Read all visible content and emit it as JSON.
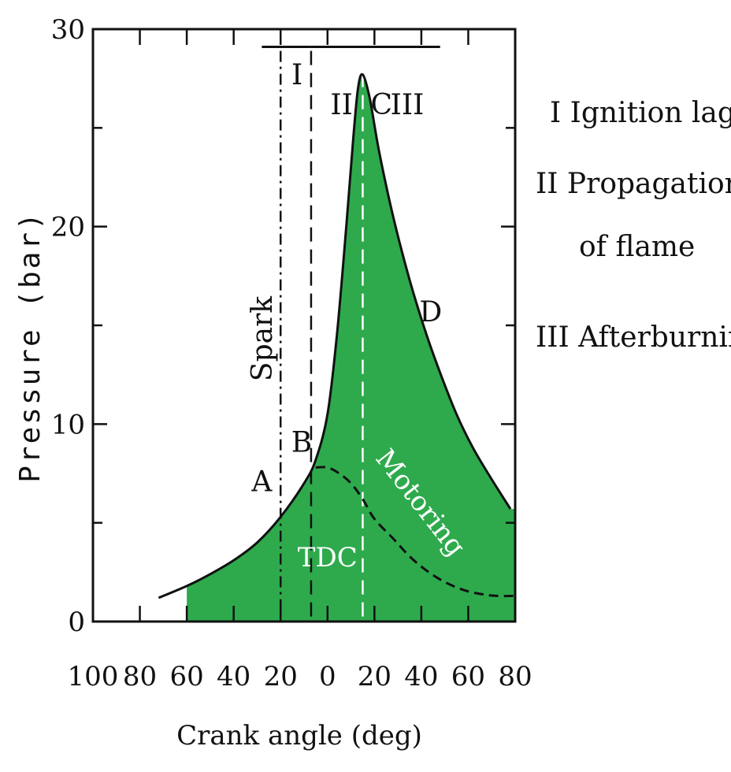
{
  "chart_data": {
    "type": "line",
    "title": "",
    "xlabel": "Crank angle (deg)",
    "ylabel": "Pressure (bar)",
    "xlim": [
      -100,
      80
    ],
    "ylim": [
      0,
      30
    ],
    "x_ticks": [
      {
        "value": -100,
        "label": "100"
      },
      {
        "value": -80,
        "label": "80"
      },
      {
        "value": -60,
        "label": "60"
      },
      {
        "value": -40,
        "label": "40"
      },
      {
        "value": -20,
        "label": "20"
      },
      {
        "value": 0,
        "label": "0"
      },
      {
        "value": 20,
        "label": "20"
      },
      {
        "value": 40,
        "label": "40"
      },
      {
        "value": 60,
        "label": "60"
      },
      {
        "value": 80,
        "label": "80"
      }
    ],
    "y_ticks": [
      {
        "value": 0,
        "label": "0"
      },
      {
        "value": 10,
        "label": "10"
      },
      {
        "value": 20,
        "label": "20"
      },
      {
        "value": 30,
        "label": "30"
      }
    ],
    "series": [
      {
        "style": "solid",
        "color": "#111111",
        "fill": "#2eaa4d",
        "x": [
          -72,
          -60,
          -50,
          -40,
          -30,
          -20,
          -10,
          -5,
          0,
          4,
          8,
          11,
          13,
          15,
          18,
          22,
          28,
          35,
          42,
          48,
          55,
          62,
          70,
          78
        ],
        "y": [
          1.2,
          1.8,
          2.4,
          3.1,
          4.0,
          5.3,
          7.0,
          8.2,
          10.5,
          14.5,
          20.0,
          24.5,
          27.0,
          27.7,
          26.5,
          23.8,
          20.5,
          17.3,
          14.6,
          12.6,
          10.5,
          8.8,
          7.2,
          5.7
        ]
      },
      {
        "name": "Motoring",
        "style": "dashed",
        "color": "#111111",
        "x": [
          -5,
          0,
          5,
          10,
          15,
          20,
          28,
          35,
          42,
          50,
          58,
          65,
          72,
          80
        ],
        "y": [
          7.8,
          7.8,
          7.5,
          7.0,
          6.2,
          5.2,
          4.2,
          3.3,
          2.6,
          2.0,
          1.6,
          1.4,
          1.3,
          1.3
        ]
      }
    ],
    "vertical_lines": [
      {
        "x": -20,
        "style": "dash-dot"
      },
      {
        "x": -7,
        "style": "dashed"
      },
      {
        "x": 15,
        "style": "dashed"
      }
    ],
    "point_labels": [
      {
        "text": "A",
        "x": -28,
        "y": 6.6
      },
      {
        "text": "B",
        "x": -11,
        "y": 8.6
      },
      {
        "text": "C",
        "x": 23,
        "y": 25.7
      },
      {
        "text": "D",
        "x": 44,
        "y": 15.2
      }
    ],
    "annotations": {
      "spark": "Spark",
      "tdc": "TDC",
      "motoring": "Motoring",
      "phase_I": "I",
      "phase_II": "II",
      "phase_III": "III"
    },
    "legend_entries": [
      {
        "key": "I",
        "text": "Ignition lag"
      },
      {
        "key": "II",
        "text": "Propagation"
      },
      {
        "key": "",
        "text": "of flame"
      },
      {
        "key": "III",
        "text": "Afterburning"
      }
    ]
  }
}
